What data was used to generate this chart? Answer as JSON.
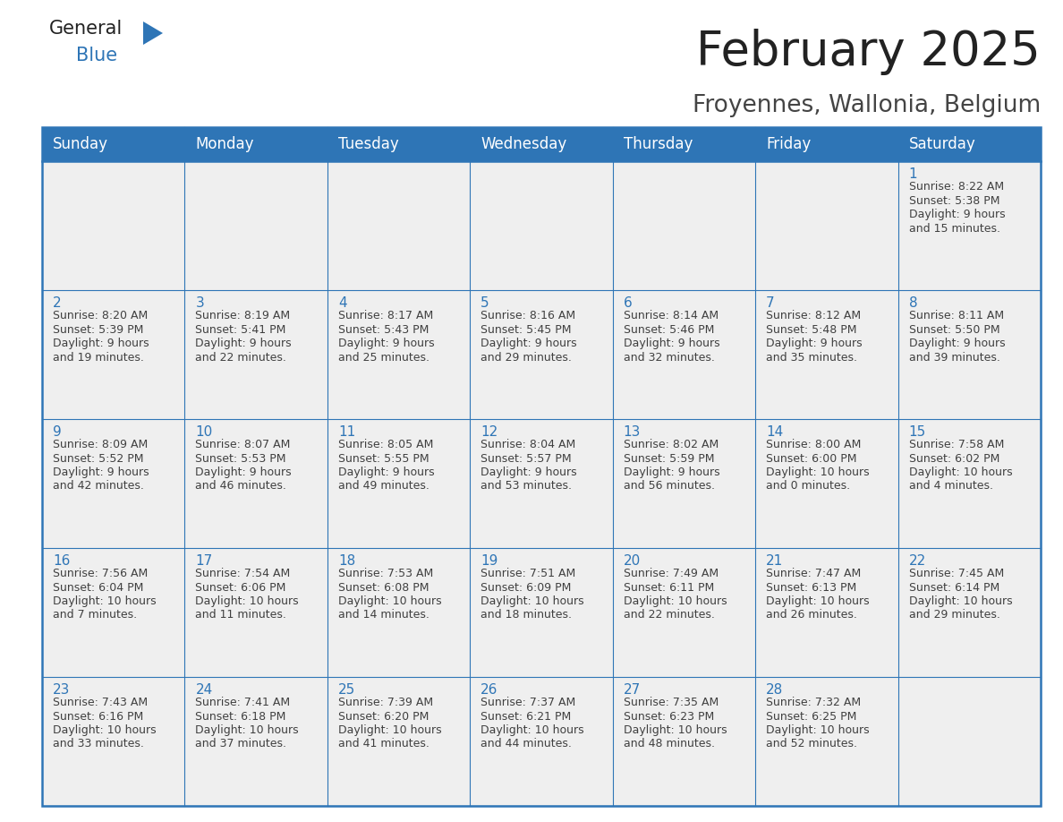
{
  "title": "February 2025",
  "subtitle": "Froyennes, Wallonia, Belgium",
  "days_of_week": [
    "Sunday",
    "Monday",
    "Tuesday",
    "Wednesday",
    "Thursday",
    "Friday",
    "Saturday"
  ],
  "header_bg": "#2E75B6",
  "header_text": "#FFFFFF",
  "cell_bg": "#EFEFEF",
  "cell_bg_empty": "#EFEFEF",
  "border_color": "#2E75B6",
  "day_number_color": "#2E75B6",
  "text_color": "#404040",
  "calendar_data": [
    [
      null,
      null,
      null,
      null,
      null,
      null,
      {
        "day": "1",
        "sunrise": "8:22 AM",
        "sunset": "5:38 PM",
        "daylight": "9 hours",
        "daylight2": "and 15 minutes."
      }
    ],
    [
      {
        "day": "2",
        "sunrise": "8:20 AM",
        "sunset": "5:39 PM",
        "daylight": "9 hours",
        "daylight2": "and 19 minutes."
      },
      {
        "day": "3",
        "sunrise": "8:19 AM",
        "sunset": "5:41 PM",
        "daylight": "9 hours",
        "daylight2": "and 22 minutes."
      },
      {
        "day": "4",
        "sunrise": "8:17 AM",
        "sunset": "5:43 PM",
        "daylight": "9 hours",
        "daylight2": "and 25 minutes."
      },
      {
        "day": "5",
        "sunrise": "8:16 AM",
        "sunset": "5:45 PM",
        "daylight": "9 hours",
        "daylight2": "and 29 minutes."
      },
      {
        "day": "6",
        "sunrise": "8:14 AM",
        "sunset": "5:46 PM",
        "daylight": "9 hours",
        "daylight2": "and 32 minutes."
      },
      {
        "day": "7",
        "sunrise": "8:12 AM",
        "sunset": "5:48 PM",
        "daylight": "9 hours",
        "daylight2": "and 35 minutes."
      },
      {
        "day": "8",
        "sunrise": "8:11 AM",
        "sunset": "5:50 PM",
        "daylight": "9 hours",
        "daylight2": "and 39 minutes."
      }
    ],
    [
      {
        "day": "9",
        "sunrise": "8:09 AM",
        "sunset": "5:52 PM",
        "daylight": "9 hours",
        "daylight2": "and 42 minutes."
      },
      {
        "day": "10",
        "sunrise": "8:07 AM",
        "sunset": "5:53 PM",
        "daylight": "9 hours",
        "daylight2": "and 46 minutes."
      },
      {
        "day": "11",
        "sunrise": "8:05 AM",
        "sunset": "5:55 PM",
        "daylight": "9 hours",
        "daylight2": "and 49 minutes."
      },
      {
        "day": "12",
        "sunrise": "8:04 AM",
        "sunset": "5:57 PM",
        "daylight": "9 hours",
        "daylight2": "and 53 minutes."
      },
      {
        "day": "13",
        "sunrise": "8:02 AM",
        "sunset": "5:59 PM",
        "daylight": "9 hours",
        "daylight2": "and 56 minutes."
      },
      {
        "day": "14",
        "sunrise": "8:00 AM",
        "sunset": "6:00 PM",
        "daylight": "10 hours",
        "daylight2": "and 0 minutes."
      },
      {
        "day": "15",
        "sunrise": "7:58 AM",
        "sunset": "6:02 PM",
        "daylight": "10 hours",
        "daylight2": "and 4 minutes."
      }
    ],
    [
      {
        "day": "16",
        "sunrise": "7:56 AM",
        "sunset": "6:04 PM",
        "daylight": "10 hours",
        "daylight2": "and 7 minutes."
      },
      {
        "day": "17",
        "sunrise": "7:54 AM",
        "sunset": "6:06 PM",
        "daylight": "10 hours",
        "daylight2": "and 11 minutes."
      },
      {
        "day": "18",
        "sunrise": "7:53 AM",
        "sunset": "6:08 PM",
        "daylight": "10 hours",
        "daylight2": "and 14 minutes."
      },
      {
        "day": "19",
        "sunrise": "7:51 AM",
        "sunset": "6:09 PM",
        "daylight": "10 hours",
        "daylight2": "and 18 minutes."
      },
      {
        "day": "20",
        "sunrise": "7:49 AM",
        "sunset": "6:11 PM",
        "daylight": "10 hours",
        "daylight2": "and 22 minutes."
      },
      {
        "day": "21",
        "sunrise": "7:47 AM",
        "sunset": "6:13 PM",
        "daylight": "10 hours",
        "daylight2": "and 26 minutes."
      },
      {
        "day": "22",
        "sunrise": "7:45 AM",
        "sunset": "6:14 PM",
        "daylight": "10 hours",
        "daylight2": "and 29 minutes."
      }
    ],
    [
      {
        "day": "23",
        "sunrise": "7:43 AM",
        "sunset": "6:16 PM",
        "daylight": "10 hours",
        "daylight2": "and 33 minutes."
      },
      {
        "day": "24",
        "sunrise": "7:41 AM",
        "sunset": "6:18 PM",
        "daylight": "10 hours",
        "daylight2": "and 37 minutes."
      },
      {
        "day": "25",
        "sunrise": "7:39 AM",
        "sunset": "6:20 PM",
        "daylight": "10 hours",
        "daylight2": "and 41 minutes."
      },
      {
        "day": "26",
        "sunrise": "7:37 AM",
        "sunset": "6:21 PM",
        "daylight": "10 hours",
        "daylight2": "and 44 minutes."
      },
      {
        "day": "27",
        "sunrise": "7:35 AM",
        "sunset": "6:23 PM",
        "daylight": "10 hours",
        "daylight2": "and 48 minutes."
      },
      {
        "day": "28",
        "sunrise": "7:32 AM",
        "sunset": "6:25 PM",
        "daylight": "10 hours",
        "daylight2": "and 52 minutes."
      },
      null
    ]
  ],
  "title_fontsize": 38,
  "subtitle_fontsize": 19,
  "header_fontsize": 12,
  "day_num_fontsize": 11,
  "cell_text_fontsize": 9,
  "fig_width": 11.88,
  "fig_height": 9.18
}
